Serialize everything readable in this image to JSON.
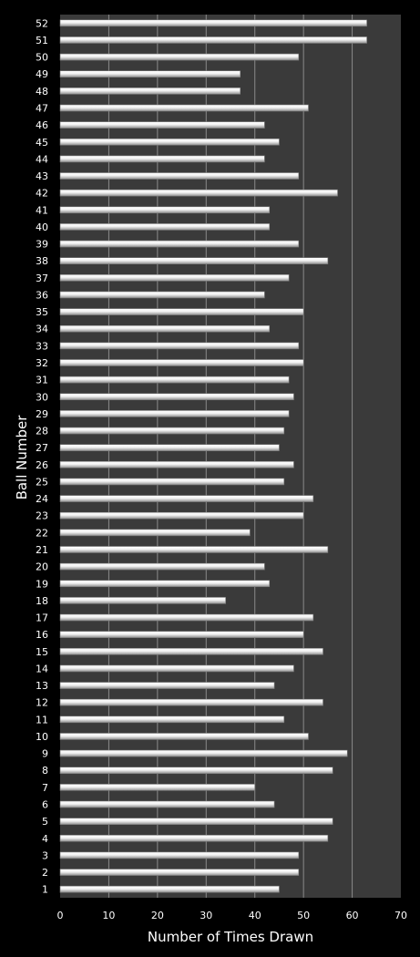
{
  "chart_data": {
    "type": "bar",
    "orientation": "horizontal",
    "xlabel": "Number of Times Drawn",
    "ylabel": "Ball Number",
    "xlim": [
      0,
      70
    ],
    "xticks": [
      "0",
      "10",
      "20",
      "30",
      "40",
      "50",
      "60",
      "70"
    ],
    "grid": true,
    "categories": [
      "1",
      "2",
      "3",
      "4",
      "5",
      "6",
      "7",
      "8",
      "9",
      "10",
      "11",
      "12",
      "13",
      "14",
      "15",
      "16",
      "17",
      "18",
      "19",
      "20",
      "21",
      "22",
      "23",
      "24",
      "25",
      "26",
      "27",
      "28",
      "29",
      "30",
      "31",
      "32",
      "33",
      "34",
      "35",
      "36",
      "37",
      "38",
      "39",
      "40",
      "41",
      "42",
      "43",
      "44",
      "45",
      "46",
      "47",
      "48",
      "49",
      "50",
      "51",
      "52"
    ],
    "values": [
      45,
      49,
      49,
      55,
      56,
      44,
      40,
      56,
      59,
      51,
      46,
      54,
      44,
      48,
      54,
      50,
      52,
      34,
      43,
      42,
      55,
      39,
      50,
      52,
      46,
      48,
      45,
      46,
      47,
      48,
      47,
      50,
      49,
      43,
      50,
      42,
      47,
      55,
      49,
      43,
      43,
      57,
      49,
      42,
      45,
      42,
      51,
      37,
      37,
      49,
      63,
      63
    ],
    "colors": {
      "background": "#000000",
      "plot_area": "#3a3a3a",
      "gridline": "#8a8a8a",
      "bar_light": "#ffffff",
      "bar_dark": "#9a9a9a",
      "text": "#ffffff"
    }
  }
}
